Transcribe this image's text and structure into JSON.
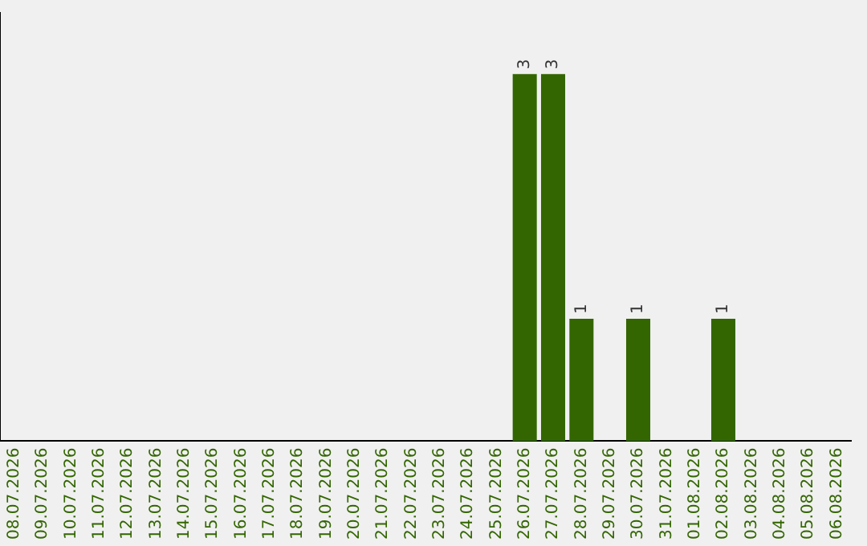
{
  "chart_data": {
    "type": "bar",
    "categories": [
      "08.07.2026",
      "09.07.2026",
      "10.07.2026",
      "11.07.2026",
      "12.07.2026",
      "13.07.2026",
      "14.07.2026",
      "15.07.2026",
      "16.07.2026",
      "17.07.2026",
      "18.07.2026",
      "19.07.2026",
      "20.07.2026",
      "21.07.2026",
      "22.07.2026",
      "23.07.2026",
      "24.07.2026",
      "25.07.2026",
      "26.07.2026",
      "27.07.2026",
      "28.07.2026",
      "29.07.2026",
      "30.07.2026",
      "31.07.2026",
      "01.08.2026",
      "02.08.2026",
      "03.08.2026",
      "04.08.2026",
      "05.08.2026",
      "06.08.2026"
    ],
    "values": [
      null,
      null,
      null,
      null,
      null,
      null,
      null,
      null,
      null,
      null,
      null,
      null,
      null,
      null,
      null,
      null,
      null,
      null,
      3,
      3,
      1,
      null,
      1,
      null,
      null,
      1,
      null,
      null,
      null,
      null
    ],
    "data_labels": true,
    "color": "#336600",
    "tick_labels": "x",
    "legend": false
  }
}
